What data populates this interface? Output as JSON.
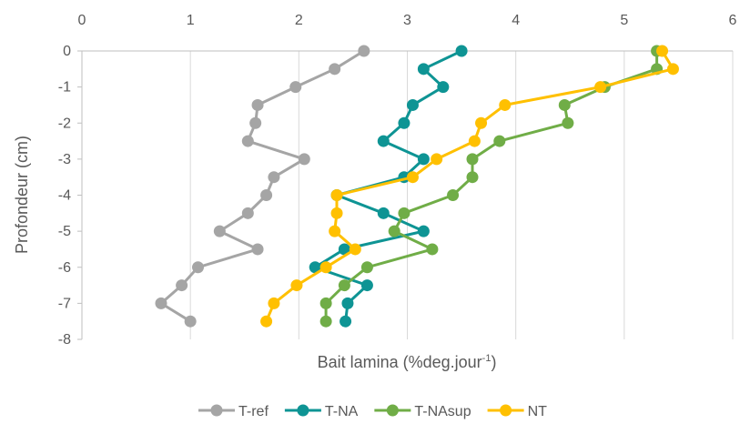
{
  "chart_data": {
    "type": "line",
    "title": "",
    "xlabel": "Bait lamina (%deg.jour",
    "xlabel_sup": "-1",
    "xlabel_end": ")",
    "ylabel": "Profondeur (cm)",
    "xlim": [
      0,
      6
    ],
    "ylim": [
      -8,
      0
    ],
    "x_ticks": [
      0,
      1,
      2,
      3,
      4,
      5,
      6
    ],
    "y_ticks": [
      0,
      -1,
      -2,
      -3,
      -4,
      -5,
      -6,
      -7,
      -8
    ],
    "x_axis_position": "top",
    "grid": "vertical",
    "legend_position": "bottom",
    "series": [
      {
        "name": "T-ref",
        "color": "#a5a5a5",
        "points": [
          [
            2.6,
            0
          ],
          [
            2.33,
            -0.5
          ],
          [
            1.97,
            -1
          ],
          [
            1.62,
            -1.5
          ],
          [
            1.6,
            -2
          ],
          [
            1.53,
            -2.5
          ],
          [
            2.05,
            -3
          ],
          [
            1.77,
            -3.5
          ],
          [
            1.7,
            -4
          ],
          [
            1.53,
            -4.5
          ],
          [
            1.27,
            -5
          ],
          [
            1.62,
            -5.5
          ],
          [
            1.07,
            -6
          ],
          [
            0.92,
            -6.5
          ],
          [
            0.73,
            -7
          ],
          [
            1.0,
            -7.5
          ]
        ]
      },
      {
        "name": "T-NA",
        "color": "#0e9494",
        "points": [
          [
            3.5,
            0
          ],
          [
            3.15,
            -0.5
          ],
          [
            3.33,
            -1
          ],
          [
            3.05,
            -1.5
          ],
          [
            2.97,
            -2
          ],
          [
            2.78,
            -2.5
          ],
          [
            3.15,
            -3
          ],
          [
            2.97,
            -3.5
          ],
          [
            2.35,
            -4
          ],
          [
            2.78,
            -4.5
          ],
          [
            3.15,
            -5
          ],
          [
            2.42,
            -5.5
          ],
          [
            2.15,
            -6
          ],
          [
            2.63,
            -6.5
          ],
          [
            2.45,
            -7
          ],
          [
            2.43,
            -7.5
          ]
        ]
      },
      {
        "name": "T-NAsup",
        "color": "#70ad47",
        "points": [
          [
            5.3,
            0
          ],
          [
            5.3,
            -0.5
          ],
          [
            4.82,
            -1
          ],
          [
            4.45,
            -1.5
          ],
          [
            4.48,
            -2
          ],
          [
            3.85,
            -2.5
          ],
          [
            3.6,
            -3
          ],
          [
            3.6,
            -3.5
          ],
          [
            3.42,
            -4
          ],
          [
            2.97,
            -4.5
          ],
          [
            2.88,
            -5
          ],
          [
            3.23,
            -5.5
          ],
          [
            2.63,
            -6
          ],
          [
            2.42,
            -6.5
          ],
          [
            2.25,
            -7
          ],
          [
            2.25,
            -7.5
          ]
        ]
      },
      {
        "name": "NT",
        "color": "#ffc000",
        "points": [
          [
            5.35,
            0
          ],
          [
            5.45,
            -0.5
          ],
          [
            4.78,
            -1
          ],
          [
            3.9,
            -1.5
          ],
          [
            3.68,
            -2
          ],
          [
            3.62,
            -2.5
          ],
          [
            3.27,
            -3
          ],
          [
            3.05,
            -3.5
          ],
          [
            2.35,
            -4
          ],
          [
            2.35,
            -4.5
          ],
          [
            2.33,
            -5
          ],
          [
            2.52,
            -5.5
          ],
          [
            2.25,
            -6
          ],
          [
            1.98,
            -6.5
          ],
          [
            1.77,
            -7
          ],
          [
            1.7,
            -7.5
          ]
        ]
      }
    ]
  }
}
